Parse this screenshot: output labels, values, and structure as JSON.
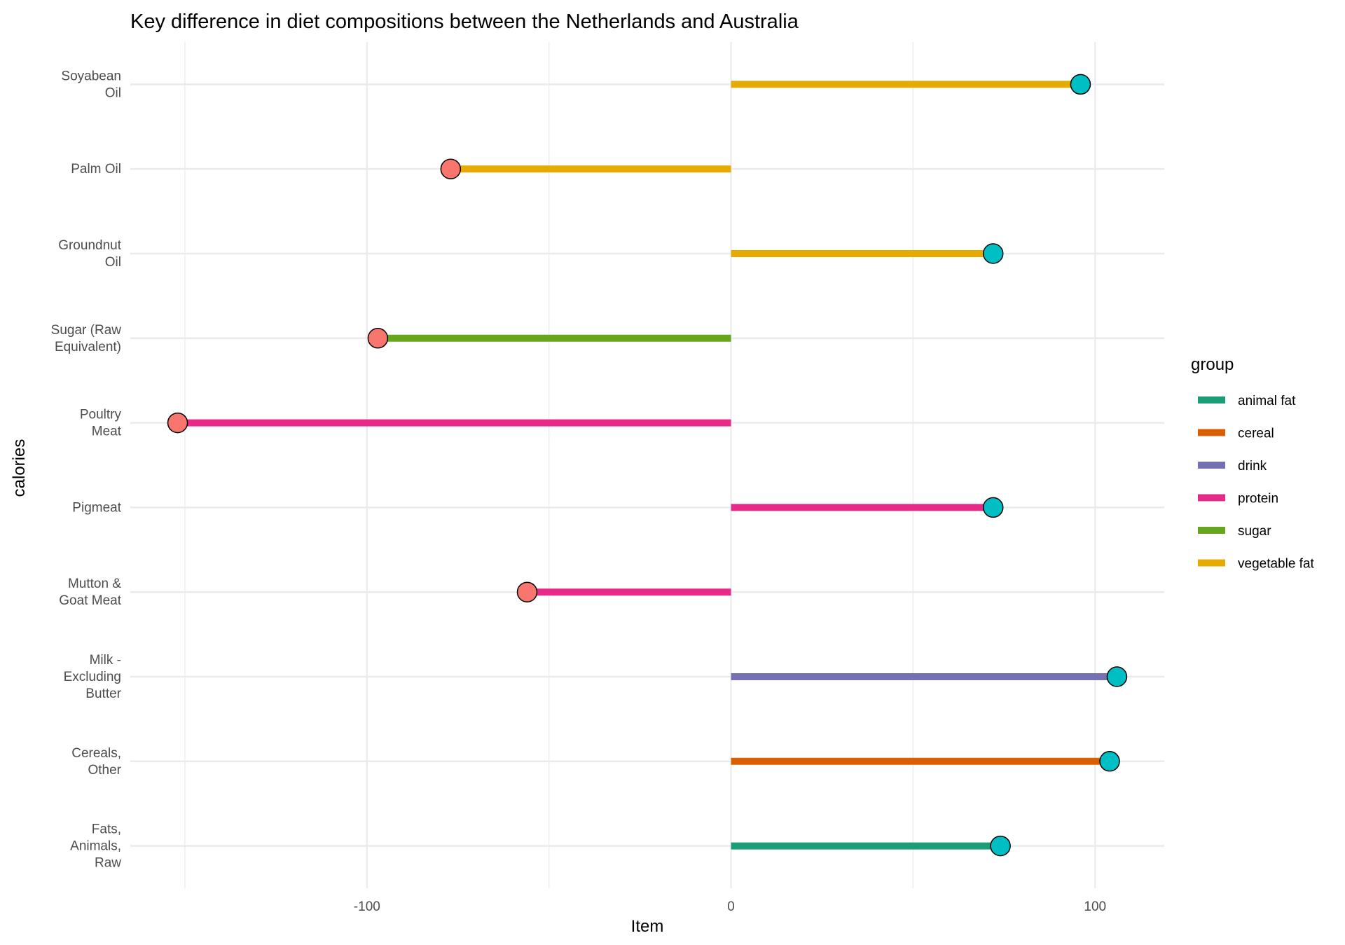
{
  "chart_data": {
    "type": "lollipop",
    "title": "Key difference in diet compositions between the Netherlands and Australia",
    "xlabel": "Item",
    "ylabel": "calories",
    "xlim": [
      -165,
      119
    ],
    "x_ticks": [
      -100,
      0,
      100
    ],
    "x_tick_labels": [
      "-100",
      "0",
      "100"
    ],
    "grid": true,
    "legend_position": "right",
    "legend_title": "group",
    "groups": [
      {
        "name": "animal fat",
        "color": "#1B9E77"
      },
      {
        "name": "cereal",
        "color": "#D95F02"
      },
      {
        "name": "drink",
        "color": "#7570B3"
      },
      {
        "name": "protein",
        "color": "#E7298A"
      },
      {
        "name": "sugar",
        "color": "#66A61E"
      },
      {
        "name": "vegetable fat",
        "color": "#E6AB02"
      }
    ],
    "point_colors": {
      "positive": "#00BFC4",
      "negative": "#F8766D"
    },
    "items": [
      {
        "label_lines": [
          "Soyabean",
          "Oil"
        ],
        "value": 96,
        "group": "vegetable fat"
      },
      {
        "label_lines": [
          "Palm Oil"
        ],
        "value": -77,
        "group": "vegetable fat"
      },
      {
        "label_lines": [
          "Groundnut",
          "Oil"
        ],
        "value": 72,
        "group": "vegetable fat"
      },
      {
        "label_lines": [
          "Sugar (Raw",
          "Equivalent)"
        ],
        "value": -97,
        "group": "sugar"
      },
      {
        "label_lines": [
          "Poultry",
          "Meat"
        ],
        "value": -152,
        "group": "protein"
      },
      {
        "label_lines": [
          "Pigmeat"
        ],
        "value": 72,
        "group": "protein"
      },
      {
        "label_lines": [
          "Mutton &",
          "Goat Meat"
        ],
        "value": -56,
        "group": "protein"
      },
      {
        "label_lines": [
          "Milk -",
          "Excluding",
          "Butter"
        ],
        "value": 106,
        "group": "drink"
      },
      {
        "label_lines": [
          "Cereals,",
          "Other"
        ],
        "value": 104,
        "group": "cereal"
      },
      {
        "label_lines": [
          "Fats,",
          "Animals,",
          "Raw"
        ],
        "value": 74,
        "group": "animal fat"
      }
    ]
  }
}
